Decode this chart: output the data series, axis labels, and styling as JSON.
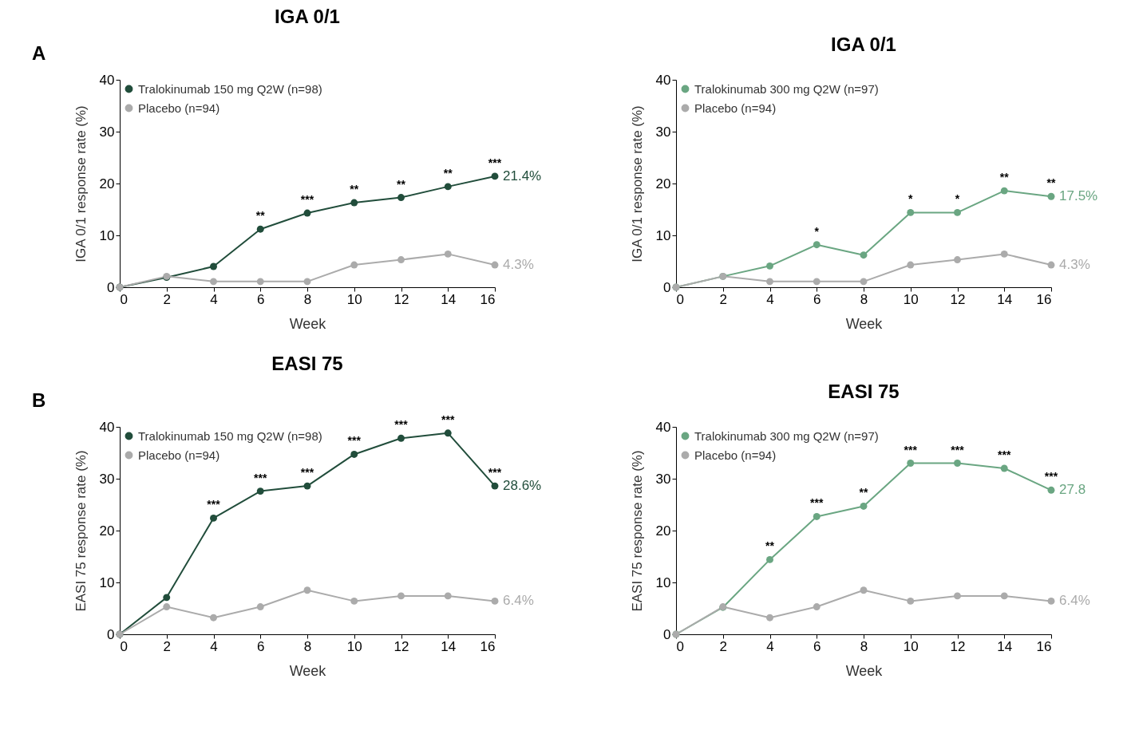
{
  "chart_data": [
    {
      "type": "line",
      "title": "IGA 0/1",
      "xlabel": "Week",
      "ylabel": "IGA 0/1 response rate (%)",
      "x": [
        0,
        2,
        4,
        6,
        8,
        10,
        12,
        14,
        16
      ],
      "xlim": [
        0,
        16
      ],
      "xticks": [
        0,
        2,
        4,
        6,
        8,
        10,
        12,
        14,
        16
      ],
      "ylim": [
        0,
        40
      ],
      "yticks": [
        0,
        10,
        20,
        30,
        40
      ],
      "grid": false,
      "legend": "top left",
      "marker": "circle",
      "line_style": "solid",
      "series": [
        {
          "name": "Tralokinumab 150 mg Q2W (n=98)",
          "color": "#214d3b",
          "values": [
            0,
            1.9,
            4.0,
            11.2,
            14.3,
            16.3,
            17.3,
            19.4,
            21.4
          ],
          "value_labels": [
            null,
            null,
            null,
            null,
            null,
            null,
            null,
            null,
            "21.4%"
          ]
        },
        {
          "name": "Placebo (n=94)",
          "color": "#ababab",
          "values": [
            0,
            2.1,
            1.1,
            1.1,
            1.1,
            4.3,
            5.3,
            6.4,
            4.3
          ],
          "value_labels": [
            null,
            null,
            null,
            null,
            null,
            null,
            null,
            null,
            "4.3%"
          ]
        }
      ],
      "annotations": [
        "A",
        {
          "text": "**",
          "x": 6,
          "y": 11.2
        },
        {
          "text": "***",
          "x": 8,
          "y": 14.3
        },
        {
          "text": "**",
          "x": 10,
          "y": 16.3
        },
        {
          "text": "**",
          "x": 12,
          "y": 17.3
        },
        {
          "text": "**",
          "x": 14,
          "y": 19.4
        },
        {
          "text": "***",
          "x": 16,
          "y": 21.4
        }
      ]
    },
    {
      "type": "line",
      "title": "IGA 0/1",
      "xlabel": "Week",
      "ylabel": "IGA 0/1 response rate (%)",
      "x": [
        0,
        2,
        4,
        6,
        8,
        10,
        12,
        14,
        16
      ],
      "xlim": [
        0,
        16
      ],
      "xticks": [
        0,
        2,
        4,
        6,
        8,
        10,
        12,
        14,
        16
      ],
      "ylim": [
        0,
        40
      ],
      "yticks": [
        0,
        10,
        20,
        30,
        40
      ],
      "grid": false,
      "legend": "top left",
      "marker": "circle",
      "line_style": "solid",
      "series": [
        {
          "name": "Tralokinumab 300 mg Q2W (n=97)",
          "color": "#6aa682",
          "values": [
            0,
            2.1,
            4.1,
            8.2,
            6.2,
            14.4,
            14.4,
            18.6,
            17.5
          ],
          "value_labels": [
            null,
            null,
            null,
            null,
            null,
            null,
            null,
            null,
            "17.5%"
          ]
        },
        {
          "name": "Placebo (n=94)",
          "color": "#ababab",
          "values": [
            0,
            2.1,
            1.1,
            1.1,
            1.1,
            4.3,
            5.3,
            6.4,
            4.3
          ],
          "value_labels": [
            null,
            null,
            null,
            null,
            null,
            null,
            null,
            null,
            "4.3%"
          ]
        }
      ],
      "annotations": [
        {
          "text": "*",
          "x": 6,
          "y": 8.2
        },
        {
          "text": "*",
          "x": 10,
          "y": 14.4
        },
        {
          "text": "*",
          "x": 12,
          "y": 14.4
        },
        {
          "text": "**",
          "x": 14,
          "y": 18.6
        },
        {
          "text": "**",
          "x": 16,
          "y": 17.5
        }
      ]
    },
    {
      "type": "line",
      "title": "EASI 75",
      "xlabel": "Week",
      "ylabel": "EASI 75 response rate (%)",
      "x": [
        0,
        2,
        4,
        6,
        8,
        10,
        12,
        14,
        16
      ],
      "xlim": [
        0,
        16
      ],
      "xticks": [
        0,
        2,
        4,
        6,
        8,
        10,
        12,
        14,
        16
      ],
      "ylim": [
        0,
        40
      ],
      "yticks": [
        0,
        10,
        20,
        30,
        40
      ],
      "grid": false,
      "legend": "top left",
      "marker": "circle",
      "line_style": "solid",
      "series": [
        {
          "name": "Tralokinumab 150 mg Q2W (n=98)",
          "color": "#214d3b",
          "values": [
            0,
            7.1,
            22.4,
            27.6,
            28.6,
            34.7,
            37.8,
            38.8,
            28.6
          ],
          "value_labels": [
            null,
            null,
            null,
            null,
            null,
            null,
            null,
            null,
            "28.6%"
          ]
        },
        {
          "name": "Placebo (n=94)",
          "color": "#ababab",
          "values": [
            0,
            5.3,
            3.2,
            5.3,
            8.5,
            6.4,
            7.4,
            7.4,
            6.4
          ],
          "value_labels": [
            null,
            null,
            null,
            null,
            null,
            null,
            null,
            null,
            "6.4%"
          ]
        }
      ],
      "annotations": [
        "B",
        {
          "text": "***",
          "x": 4,
          "y": 22.4
        },
        {
          "text": "***",
          "x": 6,
          "y": 27.6
        },
        {
          "text": "***",
          "x": 8,
          "y": 28.6
        },
        {
          "text": "***",
          "x": 10,
          "y": 34.7
        },
        {
          "text": "***",
          "x": 12,
          "y": 37.8
        },
        {
          "text": "***",
          "x": 14,
          "y": 38.8
        },
        {
          "text": "***",
          "x": 16,
          "y": 28.6
        }
      ]
    },
    {
      "type": "line",
      "title": "EASI 75",
      "xlabel": "Week",
      "ylabel": "EASI 75 response rate (%)",
      "x": [
        0,
        2,
        4,
        6,
        8,
        10,
        12,
        14,
        16
      ],
      "xlim": [
        0,
        16
      ],
      "xticks": [
        0,
        2,
        4,
        6,
        8,
        10,
        12,
        14,
        16
      ],
      "ylim": [
        0,
        40
      ],
      "yticks": [
        0,
        10,
        20,
        30,
        40
      ],
      "grid": false,
      "legend": "top left",
      "marker": "circle",
      "line_style": "solid",
      "series": [
        {
          "name": "Tralokinumab 300 mg Q2W (n=97)",
          "color": "#6aa682",
          "values": [
            0,
            5.2,
            14.4,
            22.7,
            24.7,
            33.0,
            33.0,
            32.0,
            27.8
          ],
          "value_labels": [
            null,
            null,
            null,
            null,
            null,
            null,
            null,
            null,
            "27.8"
          ]
        },
        {
          "name": "Placebo (n=94)",
          "color": "#ababab",
          "values": [
            0,
            5.3,
            3.2,
            5.3,
            8.5,
            6.4,
            7.4,
            7.4,
            6.4
          ],
          "value_labels": [
            null,
            null,
            null,
            null,
            null,
            null,
            null,
            null,
            "6.4%"
          ]
        }
      ],
      "annotations": [
        {
          "text": "**",
          "x": 4,
          "y": 14.4
        },
        {
          "text": "***",
          "x": 6,
          "y": 22.7
        },
        {
          "text": "**",
          "x": 8,
          "y": 24.7
        },
        {
          "text": "***",
          "x": 10,
          "y": 33.0
        },
        {
          "text": "***",
          "x": 12,
          "y": 33.0
        },
        {
          "text": "***",
          "x": 14,
          "y": 32.0
        },
        {
          "text": "***",
          "x": 16,
          "y": 27.8
        }
      ]
    }
  ]
}
